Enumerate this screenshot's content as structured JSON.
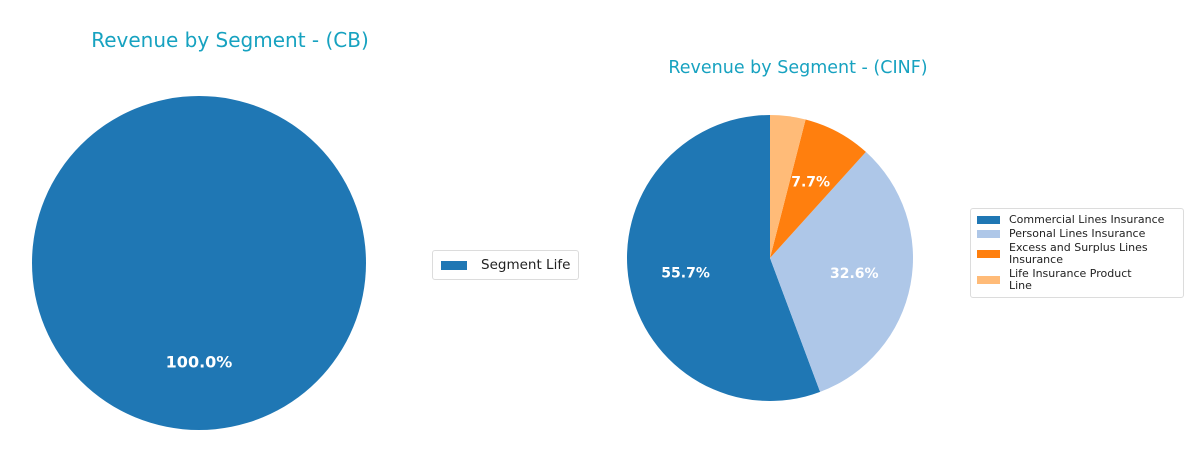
{
  "chart_data": [
    {
      "type": "pie",
      "title": "Revenue by Segment - (CB)",
      "categories": [
        "Segment Life"
      ],
      "values": [
        100.0
      ],
      "labels": [
        "100.0%"
      ],
      "colors": [
        "#1f77b4"
      ],
      "legend_position": "right",
      "start_angle": 90,
      "direction": "counterclockwise"
    },
    {
      "type": "pie",
      "title": "Revenue by Segment - (CINF)",
      "categories": [
        "Commercial Lines Insurance",
        "Personal Lines Insurance",
        "Excess and Surplus Lines Insurance",
        "Life Insurance Product Line"
      ],
      "values": [
        55.7,
        32.6,
        7.7,
        4.0
      ],
      "labels": [
        "55.7%",
        "32.6%",
        "7.7%",
        ""
      ],
      "colors": [
        "#1f77b4",
        "#aec7e8",
        "#ff7f0e",
        "#ffbb78"
      ],
      "legend_position": "right",
      "start_angle": 90,
      "direction": "counterclockwise"
    }
  ],
  "charts": [
    {
      "title": "Revenue by Segment - (CB)",
      "legend": [
        {
          "label": "Segment Life",
          "color": "#1f77b4"
        }
      ]
    },
    {
      "title": "Revenue by Segment - (CINF)",
      "legend": [
        {
          "label": "Commercial Lines Insurance",
          "color": "#1f77b4"
        },
        {
          "label": "Personal Lines Insurance",
          "color": "#aec7e8"
        },
        {
          "label": "Excess and Surplus Lines Insurance",
          "color": "#ff7f0e"
        },
        {
          "label": "Life Insurance Product Line",
          "color": "#ffbb78"
        }
      ]
    }
  ],
  "title_color": "#17a2c0"
}
